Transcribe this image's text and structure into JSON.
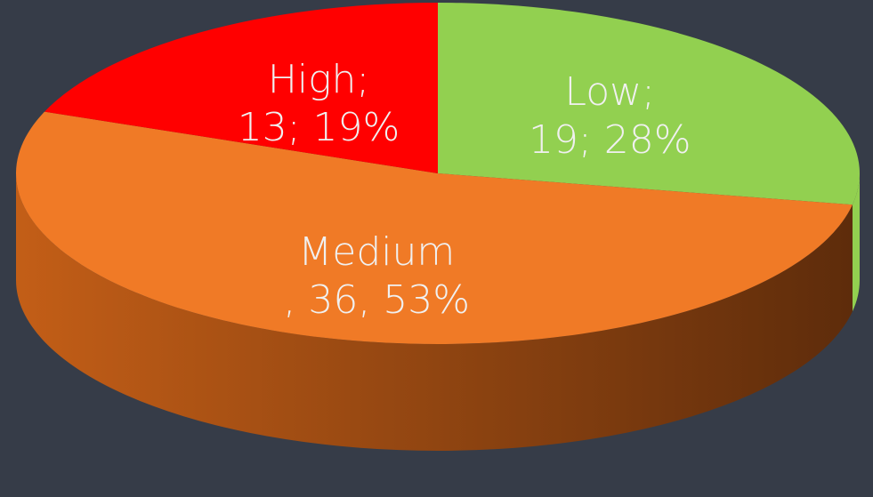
{
  "chart_data": {
    "type": "pie",
    "style": "3d",
    "slices": [
      {
        "category": "Low",
        "value": 19,
        "percent": 28,
        "color": "#92d050",
        "label_lines": [
          "Low;",
          "19; 28%"
        ]
      },
      {
        "category": "Medium",
        "value": 36,
        "percent": 53,
        "color": "#f07a26",
        "label_lines": [
          "Medium",
          ", 36, 53%"
        ]
      },
      {
        "category": "High",
        "value": 13,
        "percent": 19,
        "color": "#ff0000",
        "label_lines": [
          "High;",
          "13; 19%"
        ]
      }
    ],
    "side_colors": {
      "Medium": [
        "#c35e17",
        "#5e2c0b"
      ]
    },
    "background": "#363c48",
    "label_color": "#f0f0f0",
    "legend": "none"
  }
}
